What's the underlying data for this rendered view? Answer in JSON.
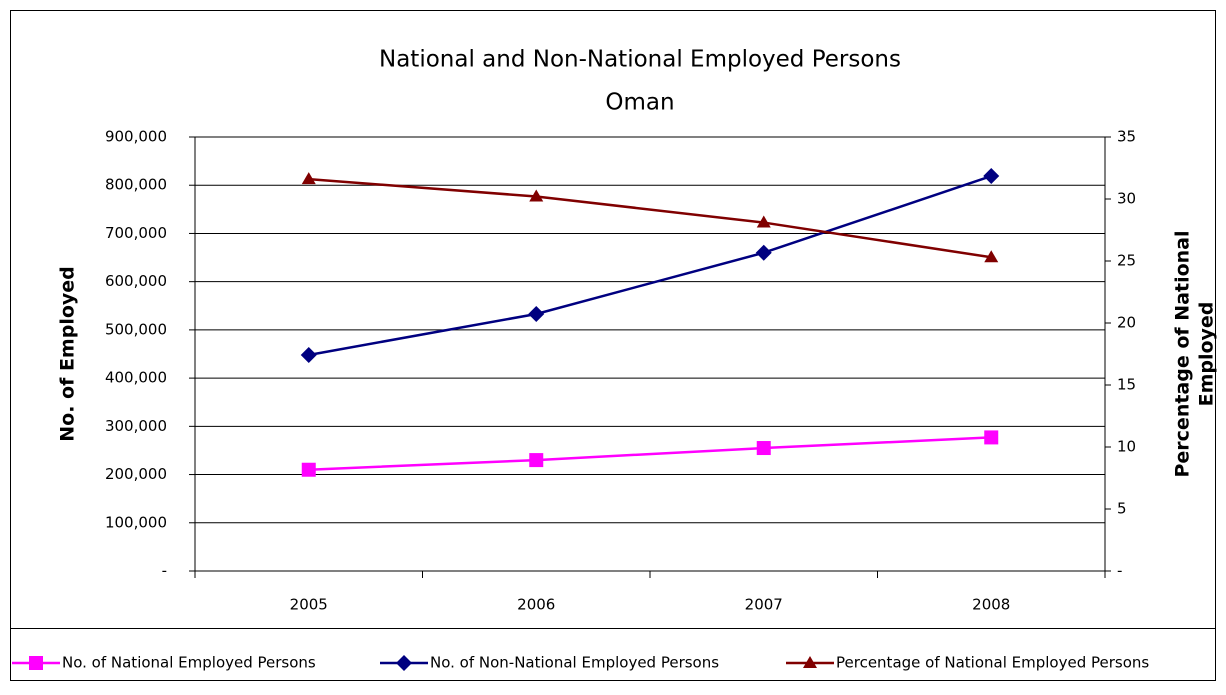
{
  "chart_data": {
    "type": "line",
    "title": "National and Non-National Employed Persons",
    "subtitle": "Oman",
    "ylabel": "No. of Employed",
    "y2label": [
      "Percentage of National",
      "Employed"
    ],
    "categories": [
      "2005",
      "2006",
      "2007",
      "2008"
    ],
    "series": [
      {
        "name": "No. of National Employed Persons",
        "color": "#ff00ff",
        "marker": "square",
        "values": [
          210000,
          230000,
          255000,
          277000
        ]
      },
      {
        "name": "No. of Non-National Employed Persons",
        "color": "#000080",
        "marker": "diamond",
        "values": [
          448000,
          533000,
          660000,
          819000
        ]
      },
      {
        "name": "Percentage of National Employed Persons",
        "color": "#800000",
        "marker": "triangle",
        "axis": "y2",
        "values": [
          31.6,
          30.2,
          28.1,
          25.3
        ]
      }
    ],
    "ylim": [
      0,
      900000
    ],
    "yticks": [
      {
        "value": 0,
        "label": "-"
      },
      {
        "value": 100000,
        "label": "100,000"
      },
      {
        "value": 200000,
        "label": "200,000"
      },
      {
        "value": 300000,
        "label": "300,000"
      },
      {
        "value": 400000,
        "label": "400,000"
      },
      {
        "value": 500000,
        "label": "500,000"
      },
      {
        "value": 600000,
        "label": "600,000"
      },
      {
        "value": 700000,
        "label": "700,000"
      },
      {
        "value": 800000,
        "label": "800,000"
      },
      {
        "value": 900000,
        "label": "900,000"
      }
    ],
    "y2lim": [
      0,
      35
    ],
    "y2ticks": [
      {
        "value": 0,
        "label": "-"
      },
      5,
      10,
      15,
      20,
      25,
      30,
      35
    ],
    "grid": true,
    "legend": "bottom"
  }
}
